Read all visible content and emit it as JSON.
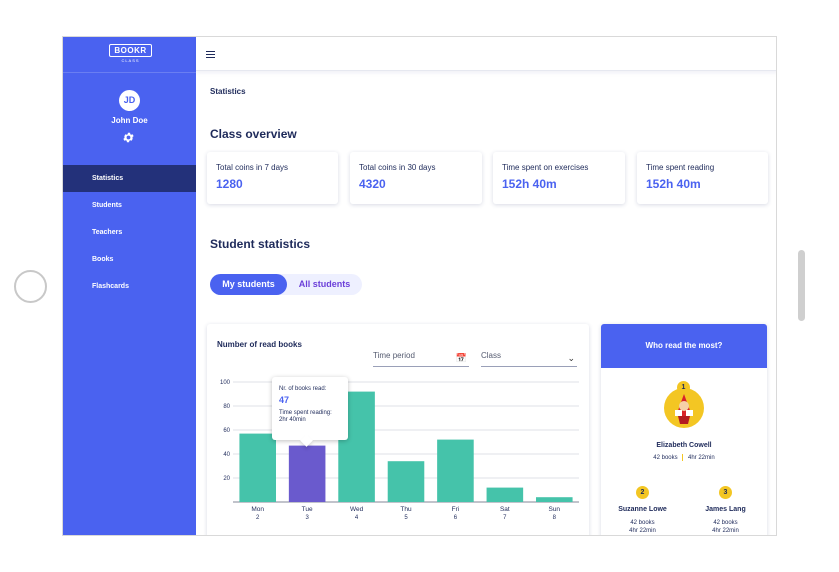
{
  "sidebar": {
    "logo": "BOOKR",
    "logo_sub": "CLASS",
    "user_initials": "JD",
    "user_name": "John Doe",
    "items": [
      {
        "label": "Statistics",
        "active": true
      },
      {
        "label": "Students"
      },
      {
        "label": "Teachers"
      },
      {
        "label": "Books"
      },
      {
        "label": "Flashcards"
      }
    ]
  },
  "header": {
    "breadcrumb": "Statistics"
  },
  "class_overview": {
    "title": "Class overview",
    "cards": [
      {
        "label": "Total coins in 7 days",
        "value": "1280"
      },
      {
        "label": "Total coins in 30 days",
        "value": "4320"
      },
      {
        "label": "Time spent on exercises",
        "value": "152h 40m"
      },
      {
        "label": "Time spent reading",
        "value": "152h 40m"
      }
    ]
  },
  "student_statistics": {
    "title": "Student statistics",
    "toggle": {
      "selected": "My students",
      "other": "All students"
    }
  },
  "chart": {
    "title": "Number of read books",
    "time_period_placeholder": "Time period",
    "class_placeholder": "Class",
    "tooltip": {
      "label": "Nr. of books read:",
      "value": "47",
      "time_label": "Time spent reading:",
      "time_value": "2hr 40min"
    }
  },
  "chart_data": {
    "type": "bar",
    "categories": [
      "Mon",
      "Tue",
      "Wed",
      "Thu",
      "Fri",
      "Sat",
      "Sun"
    ],
    "subcategories": [
      "2",
      "3",
      "4",
      "5",
      "6",
      "7",
      "8"
    ],
    "values": [
      57,
      47,
      92,
      34,
      52,
      12,
      4
    ],
    "highlighted_index": 1,
    "ylim": [
      0,
      100
    ],
    "yticks": [
      20,
      40,
      60,
      80,
      100
    ],
    "colors": {
      "bar": "#45c3aa",
      "highlight": "#6a5acd"
    }
  },
  "most_read": {
    "title": "Who read the most?",
    "first": {
      "rank": "1",
      "name": "Elizabeth Cowell",
      "books": "42 books",
      "time": "4hr 22min"
    },
    "second": {
      "rank": "2",
      "name": "Suzanne Lowe",
      "books": "42 books",
      "time": "4hr 22min"
    },
    "third": {
      "rank": "3",
      "name": "James Lang",
      "books": "42 books",
      "time": "4hr 22min"
    }
  }
}
